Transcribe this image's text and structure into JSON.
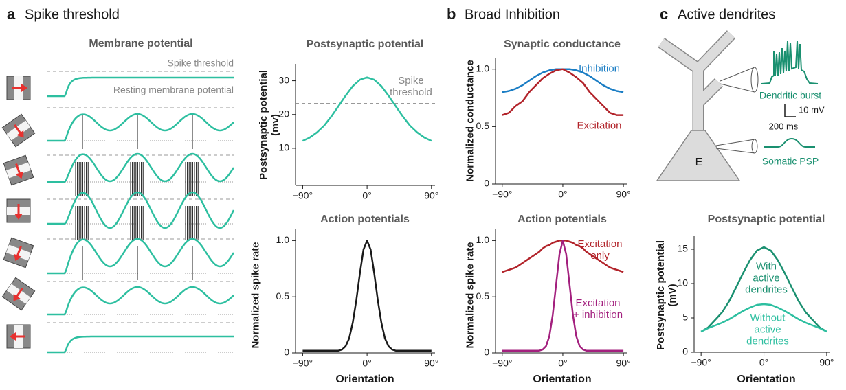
{
  "figure": {
    "panels": [
      {
        "label": "a",
        "title": "Spike threshold"
      },
      {
        "label": "b",
        "title": "Broad Inhibition"
      },
      {
        "label": "c",
        "title": "Active dendrites"
      }
    ],
    "membrane": {
      "title": "Membrane potential",
      "threshold_label": "Spike threshold",
      "rest_label": "Resting membrane potential"
    },
    "neuron": {
      "soma": "E",
      "burst_label": "Dendritic burst",
      "scale_v": "10 mV",
      "scale_t": "200 ms",
      "psp_label": "Somatic PSP"
    }
  },
  "chart_data": [
    {
      "type": "line",
      "title": "Postsynaptic potential",
      "ylabel": "Postsynaptic potential (mv)",
      "x": [
        -90,
        -80,
        -70,
        -60,
        -50,
        -40,
        -30,
        -20,
        -10,
        0,
        10,
        20,
        30,
        40,
        50,
        60,
        70,
        80,
        90
      ],
      "series": [
        {
          "color": "#2dbfa0",
          "values": [
            12.2,
            13.2,
            14.7,
            16.7,
            19.4,
            22.5,
            25.6,
            28.4,
            30.3,
            31,
            30.3,
            28.4,
            25.6,
            22.5,
            19.4,
            16.7,
            14.7,
            13.2,
            12.2
          ]
        }
      ],
      "threshold": 23.3,
      "annotation": "Spike threshold",
      "xlim": [
        -100,
        95
      ],
      "ylim": [
        -1,
        35
      ],
      "xticks": [
        {
          "value": -90,
          "label": "−90°"
        },
        {
          "value": 0,
          "label": "0°"
        },
        {
          "value": 90,
          "label": "90°"
        }
      ],
      "yticks": [
        10,
        20,
        30
      ]
    },
    {
      "type": "line",
      "title": "Action potentials",
      "ylabel": "Normalized spike rate",
      "xlabel": "Orientation",
      "x": [
        -90,
        -85,
        -80,
        -75,
        -70,
        -65,
        -60,
        -55,
        -50,
        -45,
        -40,
        -35,
        -30,
        -25,
        -20,
        -15,
        -10,
        -5,
        0,
        5,
        10,
        15,
        20,
        25,
        30,
        35,
        40,
        45,
        50,
        55,
        60,
        65,
        70,
        75,
        80,
        85,
        90
      ],
      "series": [
        {
          "color": "#1a1a1a",
          "values": [
            0.02,
            0.02,
            0.02,
            0.02,
            0.02,
            0.02,
            0.02,
            0.02,
            0.02,
            0.02,
            0.02,
            0.03,
            0.06,
            0.13,
            0.27,
            0.47,
            0.71,
            0.92,
            1.0,
            0.92,
            0.71,
            0.47,
            0.27,
            0.13,
            0.06,
            0.03,
            0.02,
            0.02,
            0.02,
            0.02,
            0.02,
            0.02,
            0.02,
            0.02,
            0.02,
            0.02,
            0.02
          ]
        }
      ],
      "xlim": [
        -100,
        95
      ],
      "ylim": [
        0,
        1.1
      ],
      "xticks": [
        {
          "value": -90,
          "label": "−90°"
        },
        {
          "value": 0,
          "label": "0°"
        },
        {
          "value": 90,
          "label": "90°"
        }
      ],
      "yticks": [
        0,
        0.5,
        {
          "value": 1,
          "label": "1.0"
        }
      ]
    },
    {
      "type": "line",
      "title": "Synaptic conductance",
      "ylabel": "Normalized conductance",
      "x": [
        -90,
        -80,
        -70,
        -60,
        -50,
        -40,
        -30,
        -20,
        -10,
        0,
        10,
        20,
        30,
        40,
        50,
        60,
        70,
        80,
        90
      ],
      "series": [
        {
          "name": "Inhibition",
          "color": "#1a7dc4",
          "values": [
            0.8,
            0.81,
            0.83,
            0.86,
            0.9,
            0.94,
            0.97,
            0.99,
            1.0,
            1.0,
            1.0,
            0.99,
            0.97,
            0.94,
            0.9,
            0.86,
            0.83,
            0.81,
            0.8
          ]
        },
        {
          "name": "Excitation",
          "color": "#b2232a",
          "values": [
            0.6,
            0.62,
            0.68,
            0.72,
            0.8,
            0.86,
            0.92,
            0.96,
            0.99,
            1.0,
            0.97,
            0.93,
            0.88,
            0.8,
            0.74,
            0.68,
            0.62,
            0.6,
            0.6
          ]
        }
      ],
      "xlim": [
        -100,
        95
      ],
      "ylim": [
        0,
        1.1
      ],
      "xticks": [
        {
          "value": -90,
          "label": "−90°"
        },
        {
          "value": 0,
          "label": "0°"
        },
        {
          "value": 90,
          "label": "90°"
        }
      ],
      "yticks": [
        0,
        0.5,
        {
          "value": 1,
          "label": "1.0"
        }
      ]
    },
    {
      "type": "line",
      "title": "Action potentials",
      "ylabel": "Normalized spike rate",
      "xlabel": "Orientation",
      "x": [
        -90,
        -85,
        -80,
        -75,
        -70,
        -65,
        -60,
        -55,
        -50,
        -45,
        -40,
        -35,
        -30,
        -25,
        -20,
        -15,
        -10,
        -5,
        0,
        5,
        10,
        15,
        20,
        25,
        30,
        35,
        40,
        45,
        50,
        55,
        60,
        65,
        70,
        75,
        80,
        85,
        90
      ],
      "series": [
        {
          "name": "Excitation only",
          "color": "#b2232a",
          "values": [
            0.72,
            0.73,
            0.74,
            0.75,
            0.76,
            0.78,
            0.8,
            0.82,
            0.84,
            0.86,
            0.88,
            0.9,
            0.93,
            0.95,
            0.96,
            0.98,
            0.99,
            1.0,
            1.0,
            1.0,
            0.99,
            0.98,
            0.96,
            0.95,
            0.93,
            0.9,
            0.88,
            0.86,
            0.84,
            0.82,
            0.8,
            0.78,
            0.76,
            0.75,
            0.74,
            0.73,
            0.72
          ]
        },
        {
          "name": "Excitation + inhibition",
          "color": "#a3207e",
          "values": [
            0.02,
            0.02,
            0.02,
            0.02,
            0.02,
            0.02,
            0.02,
            0.02,
            0.02,
            0.02,
            0.02,
            0.02,
            0.03,
            0.06,
            0.15,
            0.34,
            0.61,
            0.88,
            1.0,
            0.88,
            0.61,
            0.34,
            0.15,
            0.06,
            0.03,
            0.02,
            0.02,
            0.02,
            0.02,
            0.02,
            0.02,
            0.02,
            0.02,
            0.02,
            0.02,
            0.02,
            0.02
          ]
        }
      ],
      "xlim": [
        -100,
        95
      ],
      "ylim": [
        0,
        1.1
      ],
      "xticks": [
        {
          "value": -90,
          "label": "−90°"
        },
        {
          "value": 0,
          "label": "0°"
        },
        {
          "value": 90,
          "label": "90°"
        }
      ],
      "yticks": [
        0,
        0.5,
        {
          "value": 1,
          "label": "1.0"
        }
      ]
    },
    {
      "type": "line",
      "title": "Postsynaptic potential",
      "ylabel": "Postsynaptic potential (mV)",
      "xlabel": "Orientation",
      "x": [
        -90,
        -80,
        -70,
        -60,
        -50,
        -40,
        -30,
        -20,
        -10,
        0,
        10,
        20,
        30,
        40,
        50,
        60,
        70,
        80,
        90
      ],
      "series": [
        {
          "name": "With active dendrites",
          "color": "#1a9070",
          "values": [
            3.0,
            3.6,
            4.7,
            5.8,
            7.4,
            9.4,
            11.5,
            13.4,
            14.8,
            15.3,
            14.8,
            13.4,
            11.5,
            9.4,
            7.4,
            5.8,
            4.7,
            3.6,
            3.0
          ]
        },
        {
          "name": "Without active dendrites",
          "color": "#2dbfa0",
          "values": [
            3.0,
            3.5,
            3.9,
            4.3,
            4.8,
            5.4,
            6.0,
            6.5,
            6.9,
            7.0,
            6.9,
            6.5,
            6.0,
            5.4,
            4.8,
            4.3,
            3.9,
            3.5,
            3.0
          ]
        }
      ],
      "xlim": [
        -100,
        95
      ],
      "ylim": [
        0,
        17
      ],
      "xticks": [
        {
          "value": -90,
          "label": "−90°"
        },
        {
          "value": 0,
          "label": "0°"
        },
        {
          "value": 90,
          "label": "90°"
        }
      ],
      "yticks": [
        0,
        5,
        10,
        15
      ]
    }
  ]
}
